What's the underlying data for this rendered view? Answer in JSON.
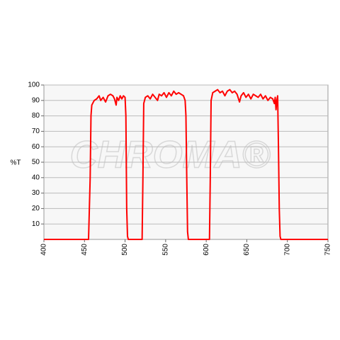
{
  "chart_data": {
    "type": "line",
    "y_label": "%T",
    "watermark": "CHROMA®",
    "color": "#ff0000",
    "grid": true,
    "xlim": [
      400,
      750
    ],
    "xticks": [
      400,
      450,
      500,
      550,
      600,
      650,
      700,
      750
    ],
    "ylim": [
      0,
      100
    ],
    "yticks": [
      10,
      20,
      30,
      40,
      50,
      60,
      70,
      80,
      90,
      100
    ],
    "x": [
      400,
      455,
      457,
      458,
      459,
      462,
      465,
      468,
      470,
      473,
      476,
      479,
      482,
      485,
      487,
      489,
      490,
      492,
      494,
      496,
      498,
      500,
      501,
      502,
      503,
      504,
      521,
      522,
      523,
      525,
      528,
      531,
      534,
      537,
      540,
      542,
      545,
      548,
      551,
      554,
      557,
      560,
      563,
      566,
      569,
      572,
      574,
      575,
      576,
      577,
      578,
      604,
      605,
      606,
      608,
      611,
      614,
      617,
      620,
      623,
      626,
      629,
      632,
      635,
      638,
      641,
      643,
      646,
      649,
      652,
      655,
      658,
      661,
      664,
      667,
      670,
      673,
      676,
      679,
      682,
      684,
      685,
      686,
      687,
      688,
      689,
      690,
      691,
      692,
      750
    ],
    "values": [
      0,
      0,
      40,
      80,
      87,
      90,
      91,
      93,
      90,
      92,
      89,
      93,
      94,
      93,
      91,
      87,
      92,
      90,
      93,
      91,
      93,
      92,
      80,
      20,
      2,
      0,
      0,
      40,
      88,
      92,
      93,
      91,
      94,
      92,
      90,
      94,
      93,
      95,
      92,
      95,
      93,
      96,
      94,
      95,
      94,
      93,
      90,
      80,
      40,
      5,
      0,
      0,
      40,
      90,
      95,
      96,
      97,
      95,
      96,
      93,
      96,
      97,
      95,
      96,
      94,
      89,
      93,
      95,
      92,
      94,
      91,
      94,
      93,
      92,
      94,
      91,
      93,
      90,
      92,
      91,
      88,
      92,
      84,
      90,
      93,
      60,
      20,
      2,
      0,
      0
    ]
  }
}
